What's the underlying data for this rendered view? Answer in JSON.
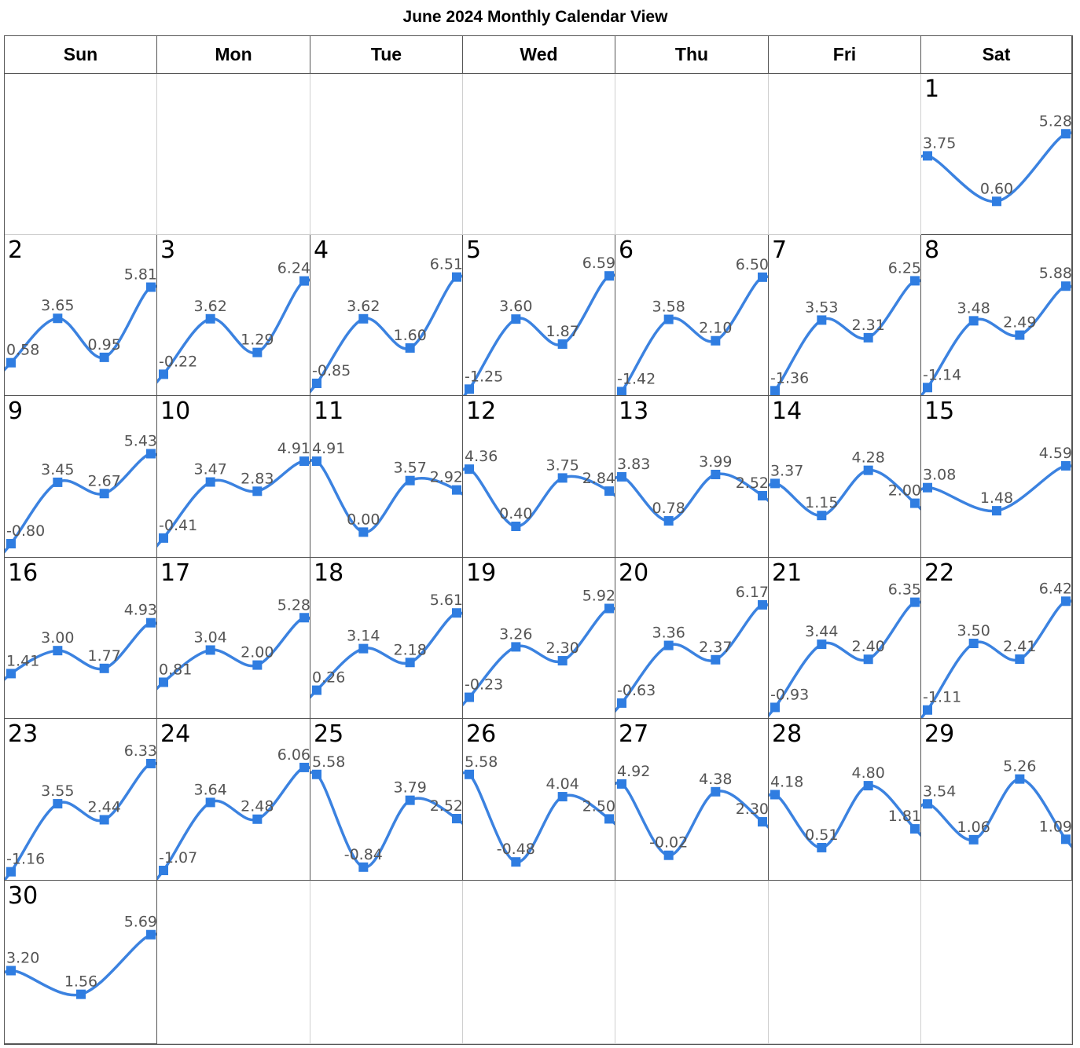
{
  "title": "June 2024 Monthly Calendar View",
  "weekdays": [
    "Sun",
    "Mon",
    "Tue",
    "Wed",
    "Thu",
    "Fri",
    "Sat"
  ],
  "colors": {
    "line": "#3b82e0",
    "marker": "#2f7de1",
    "label": "#555555"
  },
  "chart_data": {
    "type": "line",
    "month": "June 2024",
    "first_weekday_index": 6,
    "days": [
      {
        "day": "1",
        "values": [
          3.75,
          0.6,
          5.28
        ]
      },
      {
        "day": "2",
        "values": [
          0.58,
          3.65,
          0.95,
          5.81
        ]
      },
      {
        "day": "3",
        "values": [
          -0.22,
          3.62,
          1.29,
          6.24
        ]
      },
      {
        "day": "4",
        "values": [
          -0.85,
          3.62,
          1.6,
          6.51
        ]
      },
      {
        "day": "5",
        "values": [
          -1.25,
          3.6,
          1.87,
          6.59
        ]
      },
      {
        "day": "6",
        "values": [
          -1.42,
          3.58,
          2.1,
          6.5
        ]
      },
      {
        "day": "7",
        "values": [
          -1.36,
          3.53,
          2.31,
          6.25
        ]
      },
      {
        "day": "8",
        "values": [
          -1.14,
          3.48,
          2.49,
          5.88
        ]
      },
      {
        "day": "9",
        "values": [
          -0.8,
          3.45,
          2.67,
          5.43
        ]
      },
      {
        "day": "10",
        "values": [
          -0.41,
          3.47,
          2.83,
          4.91
        ]
      },
      {
        "day": "11",
        "values": [
          4.91,
          -0.0,
          3.57,
          2.92
        ]
      },
      {
        "day": "12",
        "values": [
          4.36,
          0.4,
          3.75,
          2.84
        ]
      },
      {
        "day": "13",
        "values": [
          3.83,
          0.78,
          3.99,
          2.52
        ]
      },
      {
        "day": "14",
        "values": [
          3.37,
          1.15,
          4.28,
          2.0
        ]
      },
      {
        "day": "15",
        "values": [
          3.08,
          1.48,
          4.59
        ]
      },
      {
        "day": "16",
        "values": [
          1.41,
          3.0,
          1.77,
          4.93
        ]
      },
      {
        "day": "17",
        "values": [
          0.81,
          3.04,
          2.0,
          5.28
        ]
      },
      {
        "day": "18",
        "values": [
          0.26,
          3.14,
          2.18,
          5.61
        ]
      },
      {
        "day": "19",
        "values": [
          -0.23,
          3.26,
          2.3,
          5.92
        ]
      },
      {
        "day": "20",
        "values": [
          -0.63,
          3.36,
          2.37,
          6.17
        ]
      },
      {
        "day": "21",
        "values": [
          -0.93,
          3.44,
          2.4,
          6.35
        ]
      },
      {
        "day": "22",
        "values": [
          -1.11,
          3.5,
          2.41,
          6.42
        ]
      },
      {
        "day": "23",
        "values": [
          -1.16,
          3.55,
          2.44,
          6.33
        ]
      },
      {
        "day": "24",
        "values": [
          -1.07,
          3.64,
          2.48,
          6.06
        ]
      },
      {
        "day": "25",
        "values": [
          5.58,
          -0.84,
          3.79,
          2.52
        ]
      },
      {
        "day": "26",
        "values": [
          5.58,
          -0.48,
          4.04,
          2.5
        ]
      },
      {
        "day": "27",
        "values": [
          4.92,
          -0.02,
          4.38,
          2.3
        ]
      },
      {
        "day": "28",
        "values": [
          4.18,
          0.51,
          4.8,
          1.81
        ]
      },
      {
        "day": "29",
        "values": [
          3.54,
          1.06,
          5.26,
          1.09
        ]
      },
      {
        "day": "30",
        "values": [
          3.2,
          1.56,
          5.69
        ]
      }
    ]
  }
}
